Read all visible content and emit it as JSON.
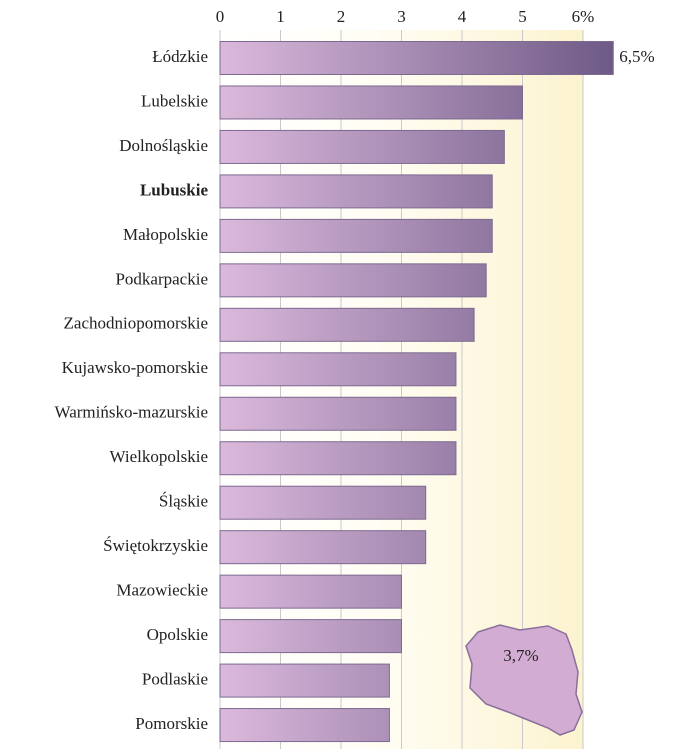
{
  "chart_data": {
    "type": "barh",
    "categories": [
      "Łódzkie",
      "Lubelskie",
      "Dolnośląskie",
      "Lubuskie",
      "Małopolskie",
      "Podkarpackie",
      "Zachodniopomorskie",
      "Kujawsko-pomorskie",
      "Warmińsko-mazurskie",
      "Wielkopolskie",
      "Śląskie",
      "Świętokrzyskie",
      "Mazowieckie",
      "Opolskie",
      "Podlaskie",
      "Pomorskie"
    ],
    "values": [
      6.5,
      5.0,
      4.7,
      4.5,
      4.5,
      4.4,
      4.2,
      3.9,
      3.9,
      3.9,
      3.4,
      3.4,
      3.0,
      3.0,
      2.8,
      2.8
    ],
    "value_labels": [
      "6,5%",
      null,
      null,
      null,
      null,
      null,
      null,
      null,
      null,
      null,
      null,
      null,
      null,
      null,
      null,
      null
    ],
    "highlight_index": 3,
    "colors": [
      "#dbb9dc",
      "#6e5a86"
    ],
    "xlim": [
      0,
      6
    ],
    "xticks": [
      0,
      1,
      2,
      3,
      4,
      5,
      {
        "value": 6,
        "label": "6%"
      }
    ],
    "grid": true,
    "annotation": "3,7%"
  }
}
